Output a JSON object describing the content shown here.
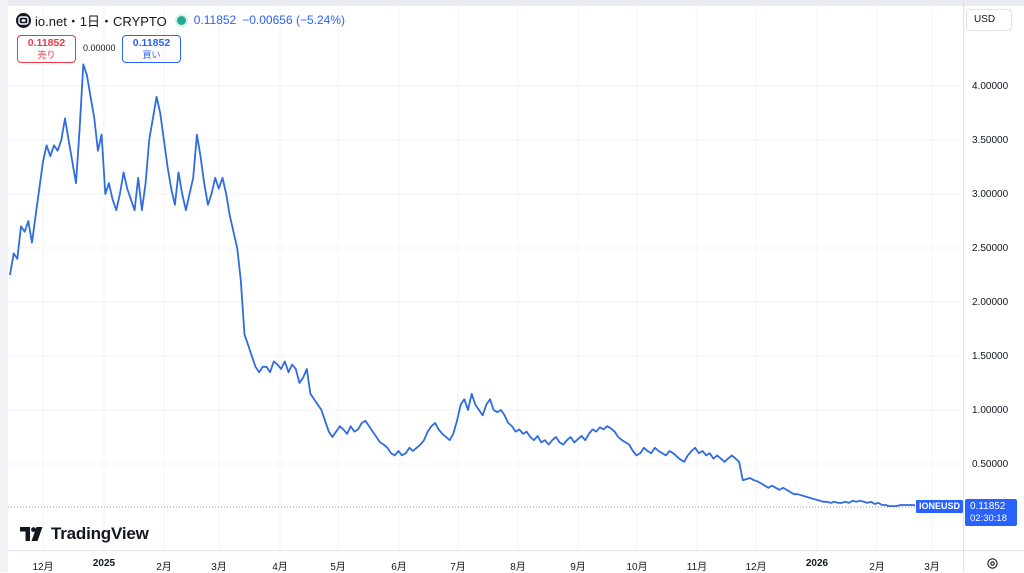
{
  "header": {
    "symbol_title": "io.net・1日・CRYPTO",
    "price": "0.11852",
    "change": "−0.00656 (−5.24%)",
    "icon": "io-net-logo-icon",
    "status_color": "#22ab94"
  },
  "order_panel": {
    "sell_price": "0.11852",
    "sell_label": "売り",
    "spread": "0.00000",
    "buy_price": "0.11852",
    "buy_label": "買い"
  },
  "currency_selector": "USD",
  "price_axis": {
    "labels": [
      "4.00000",
      "3.50000",
      "3.00000",
      "2.50000",
      "2.00000",
      "1.50000",
      "1.00000",
      "0.50000"
    ]
  },
  "time_axis": {
    "labels": [
      "12月",
      "2025",
      "2月",
      "3月",
      "4月",
      "5月",
      "6月",
      "7月",
      "8月",
      "9月",
      "10月",
      "11月",
      "12月",
      "2026",
      "2月",
      "3月"
    ]
  },
  "current_price_tag": {
    "symbol": "IONEUSD",
    "price": "0.11852",
    "countdown": "02:30:18"
  },
  "brand": "TradingView",
  "colors": {
    "line": "#2f6ce0",
    "accent": "#2962ff",
    "sell": "#f23645"
  },
  "chart_data": {
    "type": "line",
    "series": [
      {
        "values": [
          2.25,
          2.45,
          2.4,
          2.7,
          2.65,
          2.75,
          2.55,
          2.8,
          3.05,
          3.3,
          3.45,
          3.35,
          3.45,
          3.4,
          3.5,
          3.7,
          3.5,
          3.3,
          3.1,
          3.6,
          4.2,
          4.1,
          3.9,
          3.7,
          3.4,
          3.55,
          3.0,
          3.1,
          2.95,
          2.85,
          3.0,
          3.2,
          3.05,
          2.95,
          2.85,
          3.15,
          2.85,
          3.1,
          3.5,
          3.7,
          3.9,
          3.75,
          3.5,
          3.25,
          3.05,
          2.9,
          3.2,
          3.0,
          2.85,
          3.0,
          3.15,
          3.55,
          3.35,
          3.1,
          2.9,
          3.0,
          3.15,
          3.05,
          3.15,
          3.0,
          2.8,
          2.65,
          2.5,
          2.2,
          1.7,
          1.6,
          1.5,
          1.4,
          1.35,
          1.4,
          1.4,
          1.35,
          1.45,
          1.42,
          1.38,
          1.45,
          1.35,
          1.42,
          1.38,
          1.25,
          1.3,
          1.38,
          1.15,
          1.1,
          1.05,
          1.0,
          0.9,
          0.8,
          0.75,
          0.8,
          0.85,
          0.82,
          0.78,
          0.85,
          0.8,
          0.82,
          0.88,
          0.9,
          0.85,
          0.8,
          0.75,
          0.7,
          0.68,
          0.65,
          0.6,
          0.58,
          0.62,
          0.58,
          0.6,
          0.65,
          0.62,
          0.65,
          0.68,
          0.72,
          0.8,
          0.85,
          0.88,
          0.82,
          0.78,
          0.75,
          0.72,
          0.78,
          0.9,
          1.05,
          1.1,
          1.0,
          1.15,
          1.05,
          1.0,
          0.95,
          1.05,
          1.1,
          1.0,
          0.98,
          1.0,
          0.95,
          0.88,
          0.85,
          0.8,
          0.82,
          0.78,
          0.8,
          0.75,
          0.72,
          0.76,
          0.7,
          0.72,
          0.68,
          0.72,
          0.75,
          0.7,
          0.68,
          0.72,
          0.75,
          0.7,
          0.73,
          0.76,
          0.72,
          0.78,
          0.82,
          0.8,
          0.84,
          0.82,
          0.85,
          0.83,
          0.8,
          0.75,
          0.72,
          0.7,
          0.68,
          0.62,
          0.58,
          0.6,
          0.65,
          0.62,
          0.6,
          0.65,
          0.62,
          0.6,
          0.58,
          0.62,
          0.6,
          0.57,
          0.54,
          0.52,
          0.58,
          0.62,
          0.65,
          0.6,
          0.62,
          0.58,
          0.6,
          0.55,
          0.58,
          0.55,
          0.52,
          0.55,
          0.58,
          0.55,
          0.52,
          0.35,
          0.36,
          0.37,
          0.35,
          0.34,
          0.32,
          0.3,
          0.28,
          0.3,
          0.28,
          0.26,
          0.28,
          0.26,
          0.24,
          0.22,
          0.22,
          0.21,
          0.2,
          0.19,
          0.18,
          0.17,
          0.16,
          0.15,
          0.15,
          0.14,
          0.15,
          0.14,
          0.14,
          0.15,
          0.14,
          0.16,
          0.15,
          0.16,
          0.15,
          0.14,
          0.15,
          0.13,
          0.14,
          0.12,
          0.12,
          0.11,
          0.11,
          0.11,
          0.12,
          0.12,
          0.12,
          0.12,
          0.11852
        ]
      }
    ],
    "x_start": "2024-11",
    "x_end": "2026-03",
    "ylim": [
      0,
      4.4
    ],
    "grid": true
  }
}
